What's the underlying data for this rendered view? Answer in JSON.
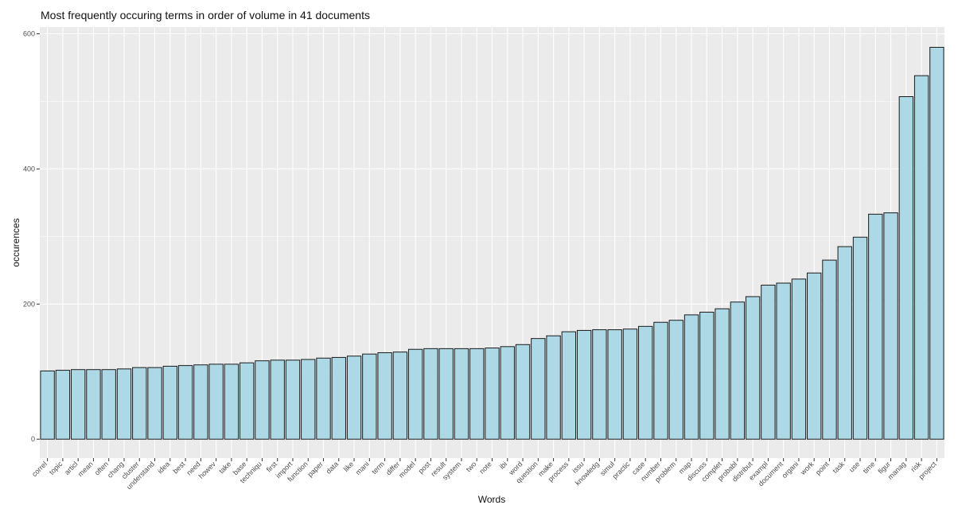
{
  "chart_data": {
    "type": "bar",
    "title": "Most frequently occuring terms in order of volume in 41 documents",
    "xlabel": "Words",
    "ylabel": "occurences",
    "ylim": [
      -28,
      610
    ],
    "yticks": [
      0,
      200,
      400,
      600
    ],
    "grid": true,
    "legend": "none",
    "colors": {
      "panel_background": "#ebebeb",
      "grid_line": "#ffffff",
      "bar_fill": "#add8e6",
      "bar_outline": "#1a1a1a",
      "tick_text": "#4d4d4d"
    },
    "categories": [
      "correl",
      "topic",
      "articl",
      "mean",
      "often",
      "chang",
      "cluster",
      "understand",
      "idea",
      "best",
      "need",
      "howev",
      "take",
      "base",
      "techniqu",
      "first",
      "import",
      "function",
      "paper",
      "data",
      "like",
      "mani",
      "term",
      "differ",
      "model",
      "post",
      "result",
      "system",
      "two",
      "note",
      "ibi",
      "word",
      "question",
      "make",
      "process",
      "issu",
      "knowledg",
      "simul",
      "practic",
      "case",
      "number",
      "problem",
      "map",
      "discuss",
      "complet",
      "probabl",
      "distribut",
      "exampl",
      "document",
      "organi",
      "work",
      "point",
      "task",
      "use",
      "time",
      "figur",
      "manag",
      "risk",
      "project"
    ],
    "values": [
      101,
      102,
      103,
      103,
      103,
      104,
      106,
      106,
      108,
      109,
      110,
      111,
      111,
      113,
      116,
      117,
      117,
      118,
      120,
      121,
      123,
      126,
      128,
      129,
      133,
      134,
      134,
      134,
      134,
      135,
      137,
      140,
      149,
      153,
      159,
      161,
      162,
      162,
      163,
      167,
      173,
      176,
      184,
      188,
      193,
      203,
      211,
      228,
      231,
      237,
      246,
      265,
      285,
      299,
      333,
      335,
      507,
      538,
      580
    ]
  }
}
